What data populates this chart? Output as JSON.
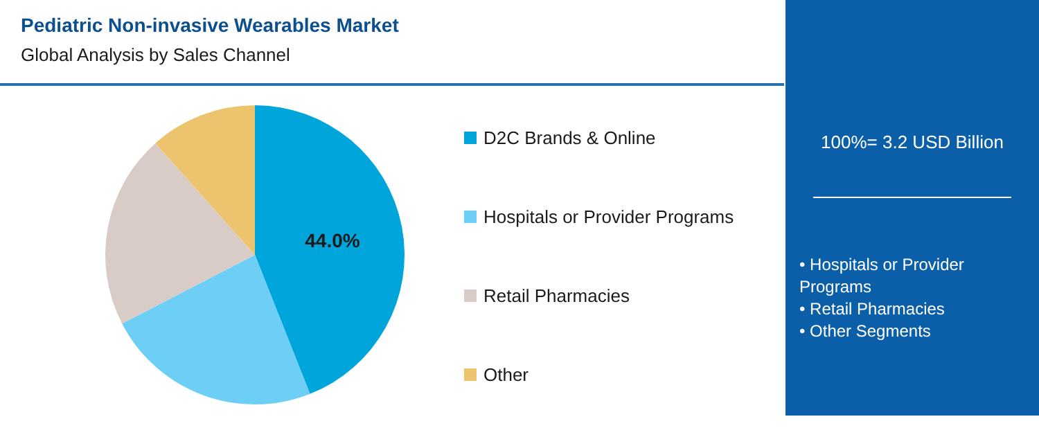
{
  "chart_data": {
    "type": "pie",
    "title": "Pediatric Non-invasive Wearables Market",
    "subtitle": "Global Analysis by Sales Channel",
    "categories": [
      "D2C Brands & Online",
      "Hospitals or Provider Programs",
      "Retail Pharmacies",
      "Other"
    ],
    "values": [
      44.0,
      23.4,
      21.0,
      11.6
    ],
    "colors": [
      "#00a6db",
      "#6dcff5",
      "#d9ccc7",
      "#ebc46d"
    ],
    "value_labels": [
      "44.0%",
      null,
      null,
      null
    ],
    "legend": "right",
    "annotations": [
      "100%= 3.2 USD Billion",
      "• Hospitals or Provider Programs",
      "• Retail Pharmacies",
      "• Other Segments"
    ]
  }
}
